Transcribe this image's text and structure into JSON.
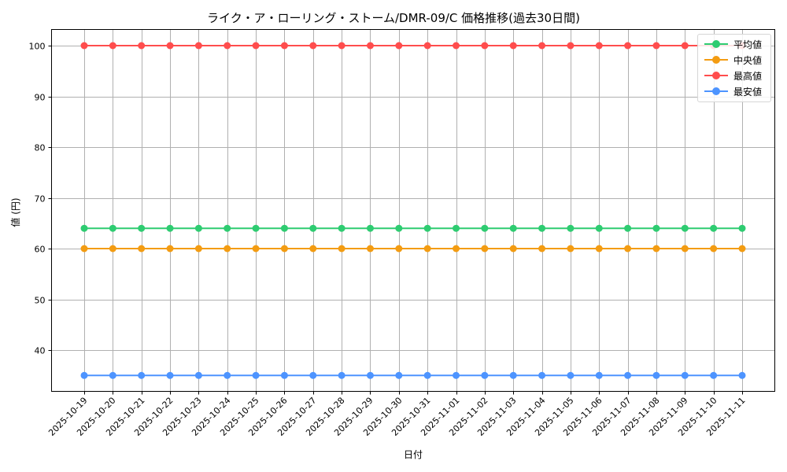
{
  "chart_data": {
    "type": "line",
    "title": "ライク・ア・ローリング・ストーム/DMR-09/C 価格推移(過去30日間)",
    "xlabel": "日付",
    "ylabel": "値 (円)",
    "x": [
      "2025-10-19",
      "2025-10-20",
      "2025-10-21",
      "2025-10-22",
      "2025-10-23",
      "2025-10-24",
      "2025-10-25",
      "2025-10-26",
      "2025-10-27",
      "2025-10-28",
      "2025-10-29",
      "2025-10-30",
      "2025-10-31",
      "2025-11-01",
      "2025-11-02",
      "2025-11-03",
      "2025-11-04",
      "2025-11-05",
      "2025-11-06",
      "2025-11-07",
      "2025-11-08",
      "2025-11-09",
      "2025-11-10",
      "2025-11-11"
    ],
    "yticks": [
      40,
      50,
      60,
      70,
      80,
      90,
      100
    ],
    "ylim": [
      32,
      103.5
    ],
    "grid": true,
    "legend_position": "upper right",
    "series": [
      {
        "name": "平均値",
        "color": "#2ecc71",
        "values": [
          64,
          64,
          64,
          64,
          64,
          64,
          64,
          64,
          64,
          64,
          64,
          64,
          64,
          64,
          64,
          64,
          64,
          64,
          64,
          64,
          64,
          64,
          64,
          64
        ]
      },
      {
        "name": "中央値",
        "color": "#f39c12",
        "values": [
          60,
          60,
          60,
          60,
          60,
          60,
          60,
          60,
          60,
          60,
          60,
          60,
          60,
          60,
          60,
          60,
          60,
          60,
          60,
          60,
          60,
          60,
          60,
          60
        ]
      },
      {
        "name": "最高値",
        "color": "#ff4d4d",
        "values": [
          100,
          100,
          100,
          100,
          100,
          100,
          100,
          100,
          100,
          100,
          100,
          100,
          100,
          100,
          100,
          100,
          100,
          100,
          100,
          100,
          100,
          100,
          100,
          100
        ]
      },
      {
        "name": "最安値",
        "color": "#4d94ff",
        "values": [
          35,
          35,
          35,
          35,
          35,
          35,
          35,
          35,
          35,
          35,
          35,
          35,
          35,
          35,
          35,
          35,
          35,
          35,
          35,
          35,
          35,
          35,
          35,
          35
        ]
      }
    ]
  }
}
